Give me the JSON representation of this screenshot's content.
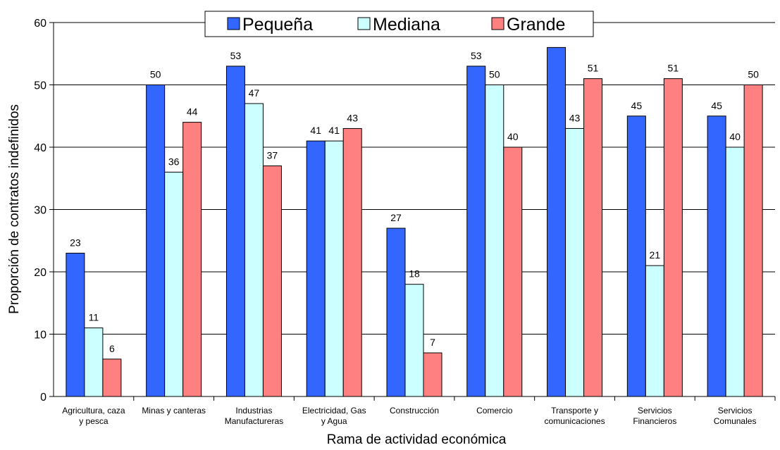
{
  "chart_data": {
    "type": "bar",
    "title": "",
    "xlabel": "Rama de actividad económica",
    "ylabel": "Proporción de contratos indefinidos",
    "ylim": [
      0,
      60
    ],
    "yticks": [
      0,
      10,
      20,
      30,
      40,
      50,
      60
    ],
    "grid": true,
    "legend_position": "top",
    "categories": [
      [
        "Agricultura, caza",
        "y pesca"
      ],
      [
        "Minas y canteras"
      ],
      [
        "Industrias",
        "Manufactureras"
      ],
      [
        "Electricidad, Gas",
        "y Agua"
      ],
      [
        "Construcción"
      ],
      [
        "Comercio"
      ],
      [
        "Transporte  y",
        "comunicaciones"
      ],
      [
        "Servicios",
        "Financieros"
      ],
      [
        "Servicios",
        "Comunales"
      ]
    ],
    "series": [
      {
        "name": "Pequeña",
        "color": "#3366ff",
        "values": [
          23,
          50,
          53,
          41,
          27,
          53,
          56,
          45,
          45
        ],
        "labels": [
          "23",
          "50",
          "53",
          "41",
          "27",
          "53",
          "",
          "45",
          "45"
        ]
      },
      {
        "name": "Mediana",
        "color": "#ccffff",
        "values": [
          11,
          36,
          47,
          41,
          18,
          50,
          43,
          21,
          40
        ],
        "labels": [
          "11",
          "36",
          "47",
          "41",
          "18",
          "50",
          "43",
          "21",
          "40"
        ]
      },
      {
        "name": "Grande",
        "color": "#ff8080",
        "values": [
          6,
          44,
          37,
          43,
          7,
          40,
          51,
          51,
          50
        ],
        "labels": [
          "6",
          "44",
          "37",
          "43",
          "7",
          "40",
          "51",
          "51",
          "50"
        ]
      }
    ]
  }
}
